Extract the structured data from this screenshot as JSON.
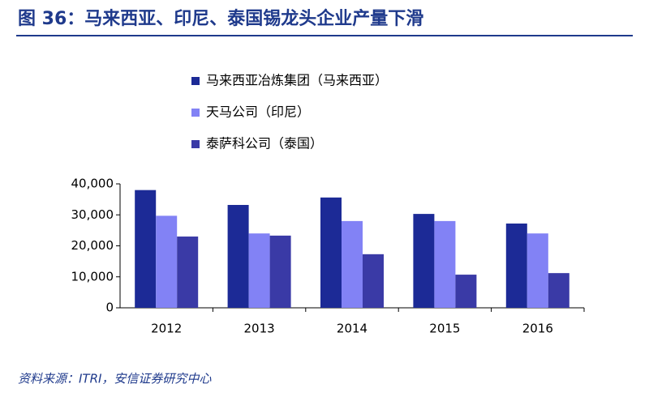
{
  "chart_data": {
    "type": "bar",
    "title": "图 36：马来西亚、印尼、泰国锡龙头企业产量下滑",
    "source": "资料来源：ITRI，安信证券研究中心",
    "categories": [
      "2012",
      "2013",
      "2014",
      "2015",
      "2016"
    ],
    "series": [
      {
        "name": "马来西亚冶炼集团（马来西亚）",
        "color": "#1c2a96",
        "values": [
          38000,
          33200,
          35600,
          30300,
          27200
        ]
      },
      {
        "name": "天马公司（印尼）",
        "color": "#8282f5",
        "values": [
          29700,
          24000,
          28000,
          28000,
          24000
        ]
      },
      {
        "name": "泰萨科公司（泰国）",
        "color": "#3a3aa6",
        "values": [
          23000,
          23300,
          17300,
          10700,
          11200
        ]
      }
    ],
    "ylim": [
      0,
      40000
    ],
    "yticks": [
      0,
      {
        "value": 10000,
        "label": "10,000"
      },
      {
        "value": 20000,
        "label": "20,000"
      },
      {
        "value": 30000,
        "label": "30,000"
      },
      {
        "value": 40000,
        "label": "40,000"
      }
    ]
  }
}
